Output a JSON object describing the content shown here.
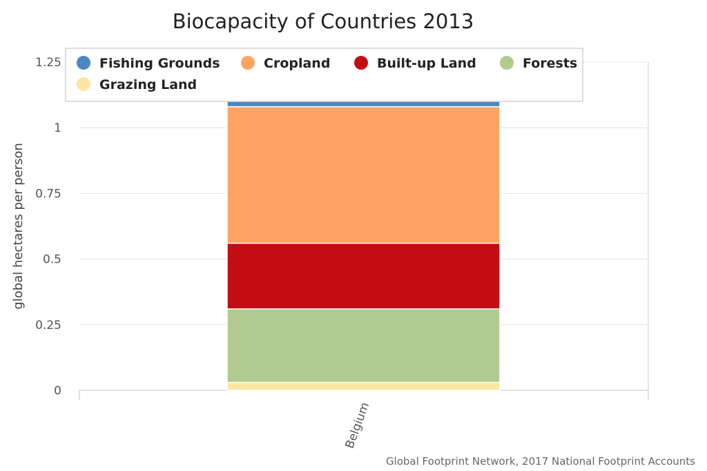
{
  "chart_data": {
    "type": "bar",
    "stacked": true,
    "title": "Biocapacity of Countries 2013",
    "ylabel": "global hectares per person",
    "categories": [
      "Belgium"
    ],
    "ylim": [
      0,
      1.25
    ],
    "yticks": [
      0,
      0.25,
      0.5,
      0.75,
      1,
      1.25
    ],
    "ytick_labels": [
      "0",
      "0.25",
      "0.5",
      "0.75",
      "1",
      "1.25"
    ],
    "grid": true,
    "legend_position": "top",
    "series": [
      {
        "name": "Fishing Grounds",
        "color": "#4a87c5",
        "values": [
          0.02
        ]
      },
      {
        "name": "Cropland",
        "color": "#fda462",
        "values": [
          0.52
        ]
      },
      {
        "name": "Built-up Land",
        "color": "#c30d13",
        "values": [
          0.25
        ]
      },
      {
        "name": "Forests",
        "color": "#b1ca8f",
        "values": [
          0.28
        ]
      },
      {
        "name": "Grazing Land",
        "color": "#fde6a1",
        "values": [
          0.03
        ]
      }
    ],
    "credits": "Global Footprint Network, 2017 National Footprint Accounts"
  }
}
